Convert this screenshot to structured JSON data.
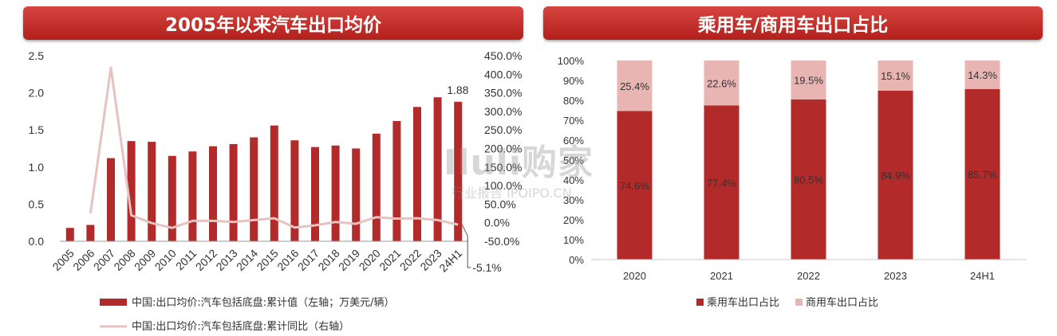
{
  "titles": {
    "left": "2005年以来汽车出口均价",
    "right": "乘用车/商用车出口占比"
  },
  "watermark": {
    "main": "Iluli购家",
    "sub": "行业报告 IPOIPO.CN"
  },
  "colors": {
    "bar_dark": "#b22a2a",
    "bar_light": "#e8b5b3",
    "line_light": "#e6c3c1",
    "title_bg": "#c0302b"
  },
  "chart_data": [
    {
      "type": "bar",
      "title": "2005年以来汽车出口均价",
      "categories": [
        "2005",
        "2006",
        "2007",
        "2008",
        "2009",
        "2010",
        "2011",
        "2012",
        "2013",
        "2014",
        "2015",
        "2016",
        "2017",
        "2018",
        "2019",
        "2020",
        "2021",
        "2022",
        "2023",
        "24H1"
      ],
      "series": [
        {
          "name": "中国:出口均价:汽车包括底盘:累计值（左轴；万美元/辆）",
          "axis": "left",
          "kind": "bar",
          "values": [
            0.18,
            0.22,
            1.12,
            1.35,
            1.34,
            1.15,
            1.21,
            1.28,
            1.31,
            1.4,
            1.56,
            1.36,
            1.27,
            1.29,
            1.25,
            1.45,
            1.62,
            1.81,
            1.94,
            1.88
          ]
        },
        {
          "name": "中国:出口均价:汽车包括底盘:累计同比（右轴）",
          "axis": "right",
          "kind": "line",
          "values": [
            null,
            25,
            418,
            20,
            -1,
            -14,
            5,
            5,
            2,
            7,
            12,
            -13,
            -7,
            2,
            -3,
            15,
            11,
            12,
            7,
            -5.1
          ]
        }
      ],
      "ylim_left": [
        0,
        2.5
      ],
      "yticks_left": [
        "0.0",
        "0.5",
        "1.0",
        "1.5",
        "2.0",
        "2.5"
      ],
      "ylim_right": [
        -50,
        450
      ],
      "yticks_right": [
        "-50.0%",
        "0.0%",
        "50.0%",
        "100.0%",
        "150.0%",
        "200.0%",
        "250.0%",
        "300.0%",
        "350.0%",
        "400.0%",
        "450.0%"
      ],
      "annotations": {
        "last_bar": "1.88",
        "last_line": "-5.1%"
      },
      "legend_position": "bottom"
    },
    {
      "type": "bar",
      "stacked": true,
      "title": "乘用车/商用车出口占比",
      "categories": [
        "2020",
        "2021",
        "2022",
        "2023",
        "24H1"
      ],
      "series": [
        {
          "name": "乘用车出口占比",
          "values": [
            74.6,
            77.4,
            80.5,
            84.9,
            85.7
          ],
          "labels": [
            "74.6%",
            "77.4%",
            "80.5%",
            "84.9%",
            "85.7%"
          ]
        },
        {
          "name": "商用车出口占比",
          "values": [
            25.4,
            22.6,
            19.5,
            15.1,
            14.3
          ],
          "labels": [
            "25.4%",
            "22.6%",
            "19.5%",
            "15.1%",
            "14.3%"
          ]
        }
      ],
      "ylim": [
        0,
        100
      ],
      "yticks": [
        "0%",
        "10%",
        "20%",
        "30%",
        "40%",
        "50%",
        "60%",
        "70%",
        "80%",
        "90%",
        "100%"
      ],
      "legend_position": "bottom"
    }
  ]
}
